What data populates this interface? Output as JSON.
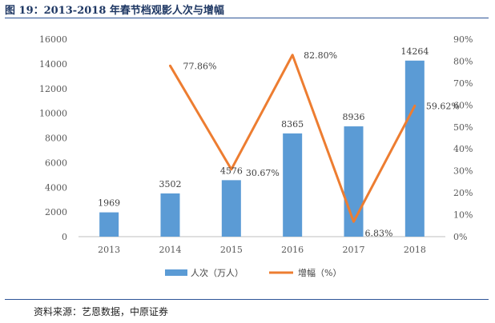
{
  "figure": {
    "title": "图 19：2013-2018 年春节档观影人次与增幅",
    "source": "资料来源：艺恩数据，中原证券"
  },
  "colors": {
    "bar": "#5b9bd5",
    "line": "#ed7d31",
    "axis": "#bfbfbf"
  },
  "chart_data": {
    "type": "bar",
    "categories": [
      "2013",
      "2014",
      "2015",
      "2016",
      "2017",
      "2018"
    ],
    "series": [
      {
        "name": "人次（万人）",
        "type": "bar",
        "axis": "left",
        "values": [
          1969,
          3502,
          4576,
          8365,
          8936,
          14264
        ],
        "labels": [
          "1969",
          "3502",
          "4576",
          "8365",
          "8936",
          "14264"
        ]
      },
      {
        "name": "增幅（%）",
        "type": "line",
        "axis": "right",
        "values": [
          null,
          77.86,
          30.67,
          82.8,
          6.83,
          59.62
        ],
        "labels": [
          "",
          "77.86%",
          "30.67%",
          "82.80%",
          "6.83%",
          "59.62%"
        ]
      }
    ],
    "y_left": {
      "lim": [
        0,
        16000
      ],
      "ticks": [
        "0",
        "2000",
        "4000",
        "6000",
        "8000",
        "10000",
        "12000",
        "14000",
        "16000"
      ]
    },
    "y_right": {
      "lim": [
        0,
        90
      ],
      "ticks": [
        "0%",
        "10%",
        "20%",
        "30%",
        "40%",
        "50%",
        "60%",
        "70%",
        "80%",
        "90%"
      ]
    },
    "grid": false,
    "legend_position": "bottom"
  }
}
